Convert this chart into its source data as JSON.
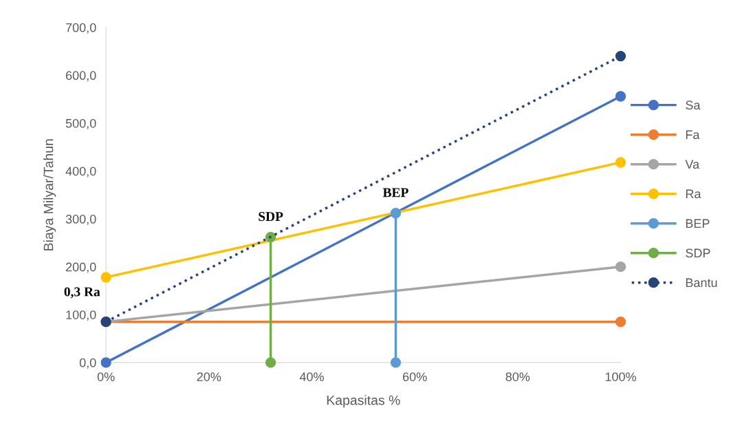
{
  "chart_data": {
    "type": "line",
    "xlabel": "Kapasitas %",
    "ylabel": "Biaya Milyar/Tahun",
    "xlim": [
      0,
      1
    ],
    "ylim": [
      0,
      700
    ],
    "xticks": [
      {
        "value": 0,
        "label": "0%"
      },
      {
        "value": 0.2,
        "label": "20%"
      },
      {
        "value": 0.4,
        "label": "40%"
      },
      {
        "value": 0.6,
        "label": "60%"
      },
      {
        "value": 0.8,
        "label": "80%"
      },
      {
        "value": 1,
        "label": "100%"
      }
    ],
    "yticks": [
      {
        "value": 0,
        "label": "0,0"
      },
      {
        "value": 100,
        "label": "100,0"
      },
      {
        "value": 200,
        "label": "200,0"
      },
      {
        "value": 300,
        "label": "300,0"
      },
      {
        "value": 400,
        "label": "400,0"
      },
      {
        "value": 500,
        "label": "500,0"
      },
      {
        "value": 600,
        "label": "600,0"
      },
      {
        "value": 700,
        "label": "700,0"
      }
    ],
    "grid": false,
    "legend": "right",
    "marker": "circle",
    "line_style": "solid",
    "series": [
      {
        "name": "Sa",
        "color": "#4472c4",
        "x": [
          0,
          1
        ],
        "values": [
          0,
          556
        ]
      },
      {
        "name": "Fa",
        "color": "#ed7d31",
        "x": [
          0,
          1
        ],
        "values": [
          85,
          85
        ]
      },
      {
        "name": "Va",
        "color": "#a5a5a5",
        "x": [
          0,
          1
        ],
        "values": [
          85,
          200
        ]
      },
      {
        "name": "Ra",
        "color": "#ffc000",
        "x": [
          0,
          1
        ],
        "values": [
          178,
          418
        ]
      },
      {
        "name": "BEP",
        "color": "#5b9bd5",
        "x": [
          0.563,
          0.563
        ],
        "values": [
          0,
          312
        ]
      },
      {
        "name": "SDP",
        "color": "#70ad47",
        "x": [
          0.32,
          0.32
        ],
        "values": [
          0,
          262
        ]
      },
      {
        "name": "Bantu",
        "color": "#264478",
        "x": [
          0,
          1
        ],
        "values": [
          85,
          640
        ],
        "line_style": "dotted"
      }
    ],
    "annotations": [
      {
        "text": "SDP",
        "x": 0.32,
        "y": 262
      },
      {
        "text": "BEP",
        "x": 0.563,
        "y": 312
      },
      {
        "text": "0,3 Ra",
        "x": 0,
        "y": 178
      }
    ]
  }
}
